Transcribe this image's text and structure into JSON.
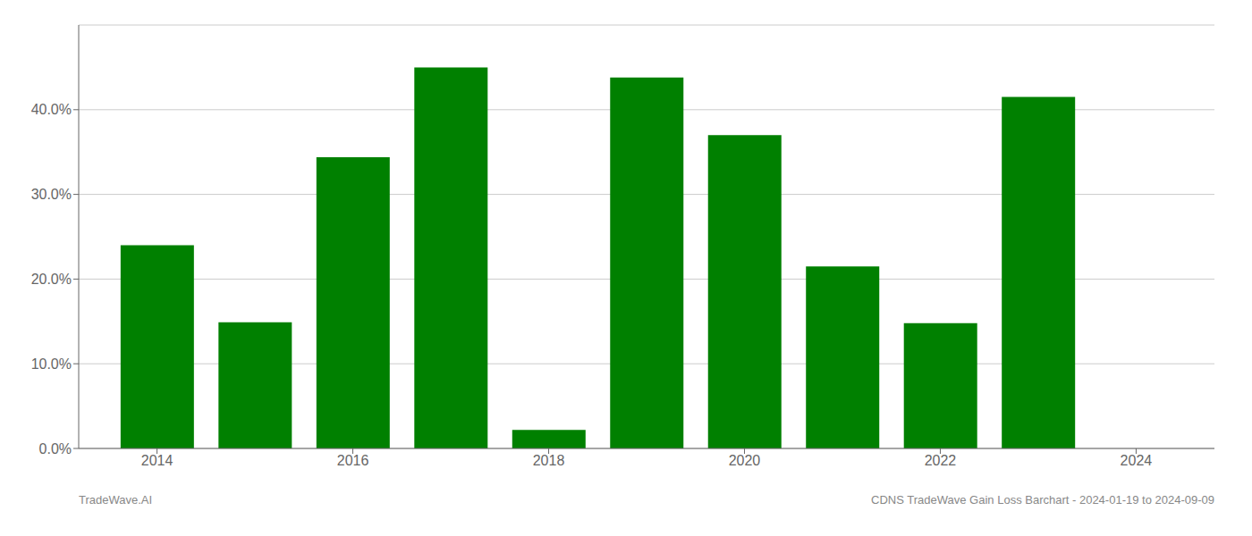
{
  "chart_data": {
    "type": "bar",
    "x": [
      2014,
      2015,
      2016,
      2017,
      2018,
      2019,
      2020,
      2021,
      2022,
      2023
    ],
    "values": [
      0.24,
      0.149,
      0.344,
      0.45,
      0.022,
      0.438,
      0.37,
      0.215,
      0.148,
      0.415
    ],
    "color": "#008000",
    "xlim": [
      2013.2,
      2024.8
    ],
    "xticks": [
      2014,
      2016,
      2018,
      2020,
      2022,
      2024
    ],
    "ylim": [
      0,
      0.5
    ],
    "yticks": [
      {
        "value": 0.0,
        "label": "0.0%"
      },
      {
        "value": 0.1,
        "label": "10.0%"
      },
      {
        "value": 0.2,
        "label": "20.0%"
      },
      {
        "value": 0.3,
        "label": "30.0%"
      },
      {
        "value": 0.4,
        "label": "40.0%"
      }
    ],
    "grid": true,
    "annotations": [
      "TradeWave.AI",
      "CDNS TradeWave Gain Loss Barchart - 2024-01-19 to 2024-09-09"
    ]
  }
}
